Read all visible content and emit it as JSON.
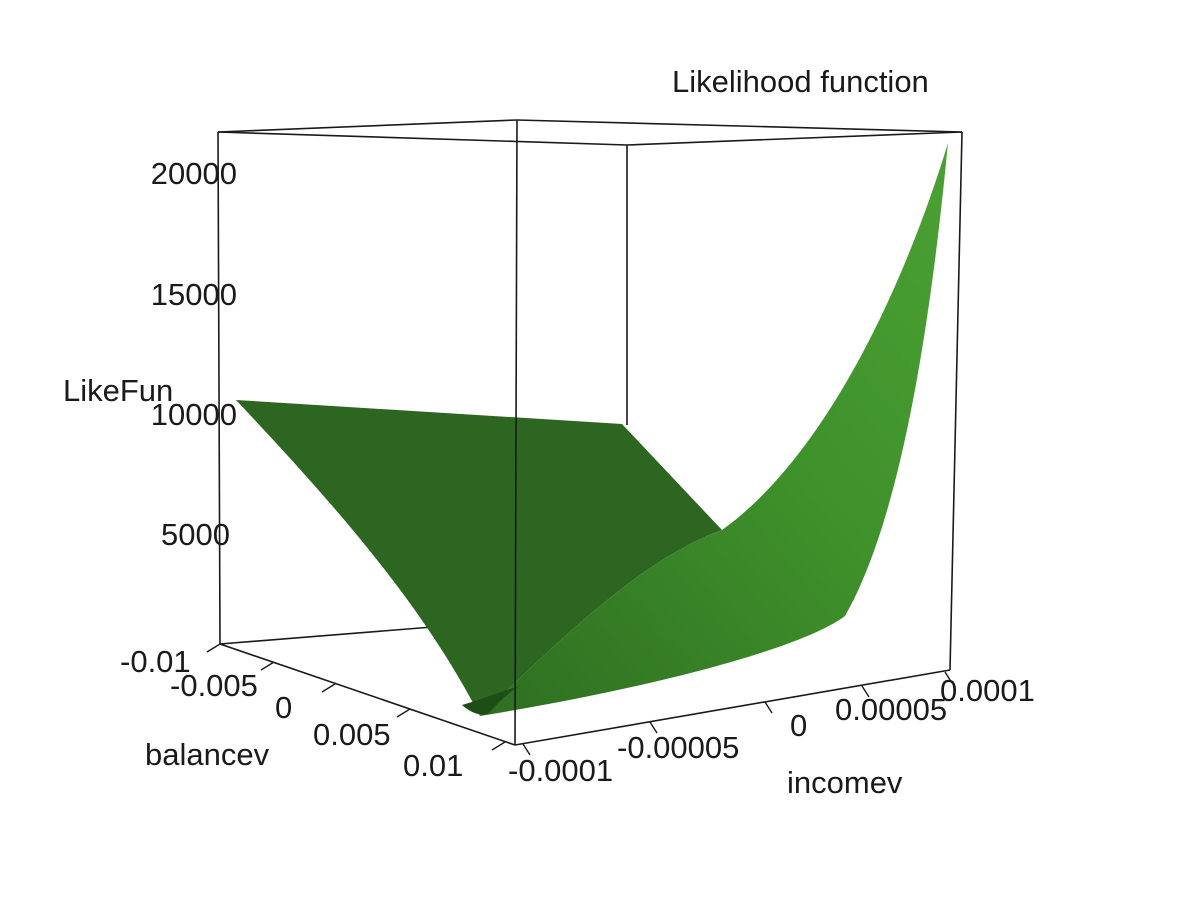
{
  "chart_data": {
    "type": "surface",
    "title": "Likelihood function",
    "x_axis": {
      "label": "incomev",
      "range": [
        -0.0001,
        0.0001
      ],
      "ticks": [
        "-0.0001",
        "-0.00005",
        "0",
        "0.00005",
        "0.0001"
      ]
    },
    "y_axis": {
      "label": "balancev",
      "range": [
        -0.01,
        0.01
      ],
      "ticks": [
        "-0.01",
        "-0.005",
        "0",
        "0.005",
        "0.01"
      ]
    },
    "z_axis": {
      "label": "LikeFun",
      "range": [
        0,
        21000
      ],
      "ticks": [
        "5000",
        "10000",
        "15000",
        "20000"
      ]
    },
    "surface": {
      "description_points": [
        {
          "incomev": -0.0001,
          "balancev": 0.01,
          "LikeFun": 0
        },
        {
          "incomev": -0.0001,
          "balancev": -0.01,
          "LikeFun": 10500
        },
        {
          "incomev": 0.0001,
          "balancev": -0.01,
          "LikeFun": 10500
        },
        {
          "incomev": 0.0001,
          "balancev": 0.01,
          "LikeFun": 20500
        }
      ],
      "color": "#3f8f2a",
      "shade_color": "#2c6620"
    },
    "box": true,
    "grid": false
  }
}
